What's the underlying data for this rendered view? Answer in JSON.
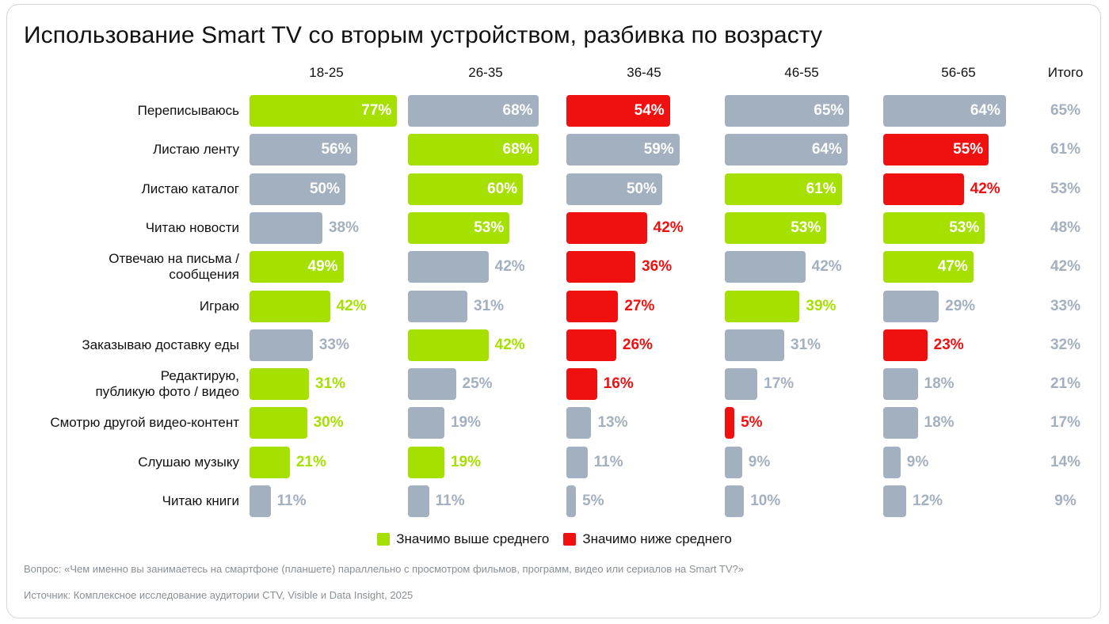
{
  "title": "Использование Smart TV со вторым устройством, разбивка по возрасту",
  "colors": {
    "above": "#a6e000",
    "below": "#f01010",
    "neutral": "#a3b0bf",
    "neutral_text": "#a3b0bf"
  },
  "legend": {
    "above_label": "Значимо выше среднего",
    "below_label": "Значимо ниже среднего"
  },
  "footnote": {
    "question": "Вопрос: «Чем именно вы занимаетесь на смартфоне (планшете) параллельно с просмотром фильмов, программ, видео или сериалов на Smart TV?»",
    "source": "Источник: Комплексное исследование аудитории CTV, Visible и Data Insight, 2025"
  },
  "chart_data": {
    "type": "bar",
    "title": "Использование Smart TV со вторым устройством, разбивка по возрасту",
    "unit": "%",
    "categories": [
      "Переписываюсь",
      "Листаю ленту",
      "Листаю каталог",
      "Читаю новости",
      "Отвечаю на письма / сообщения",
      "Играю",
      "Заказываю доставку еды",
      "Редактирую, публикую фото / видео",
      "Смотрю другой видео-контент",
      "Слушаю музыку",
      "Читаю книги"
    ],
    "category_lines": [
      [
        "Переписываюсь"
      ],
      [
        "Листаю ленту"
      ],
      [
        "Листаю каталог"
      ],
      [
        "Читаю новости"
      ],
      [
        "Отвечаю на письма /",
        "сообщения"
      ],
      [
        "Играю"
      ],
      [
        "Заказываю доставку еды"
      ],
      [
        "Редактирую,",
        "публикую фото / видео"
      ],
      [
        "Смотрю другой видео-контент"
      ],
      [
        "Слушаю музыку"
      ],
      [
        "Читаю книги"
      ]
    ],
    "series": [
      {
        "name": "18-25",
        "values": [
          77,
          56,
          50,
          38,
          49,
          42,
          33,
          31,
          30,
          21,
          11
        ],
        "significance": [
          "above",
          "neutral",
          "neutral",
          "neutral",
          "above",
          "above",
          "neutral",
          "above",
          "above",
          "above",
          "neutral"
        ]
      },
      {
        "name": "26-35",
        "values": [
          68,
          68,
          60,
          53,
          42,
          31,
          42,
          25,
          19,
          19,
          11
        ],
        "significance": [
          "neutral",
          "above",
          "above",
          "above",
          "neutral",
          "neutral",
          "above",
          "neutral",
          "neutral",
          "above",
          "neutral"
        ]
      },
      {
        "name": "36-45",
        "values": [
          54,
          59,
          50,
          42,
          36,
          27,
          26,
          16,
          13,
          11,
          5
        ],
        "significance": [
          "below",
          "neutral",
          "neutral",
          "below",
          "below",
          "below",
          "below",
          "below",
          "neutral",
          "neutral",
          "neutral"
        ]
      },
      {
        "name": "46-55",
        "values": [
          65,
          64,
          61,
          53,
          42,
          39,
          31,
          17,
          5,
          9,
          10
        ],
        "significance": [
          "neutral",
          "neutral",
          "above",
          "above",
          "neutral",
          "above",
          "neutral",
          "neutral",
          "below",
          "neutral",
          "neutral"
        ]
      },
      {
        "name": "56-65",
        "values": [
          64,
          55,
          42,
          53,
          47,
          29,
          23,
          18,
          18,
          9,
          12
        ],
        "significance": [
          "neutral",
          "below",
          "below",
          "above",
          "above",
          "neutral",
          "below",
          "neutral",
          "neutral",
          "neutral",
          "neutral"
        ]
      }
    ],
    "total": {
      "name": "Итого",
      "values": [
        65,
        61,
        53,
        48,
        42,
        33,
        32,
        21,
        17,
        14,
        9
      ]
    },
    "legend": [
      "Значимо выше среднего",
      "Значимо ниже среднего"
    ]
  }
}
